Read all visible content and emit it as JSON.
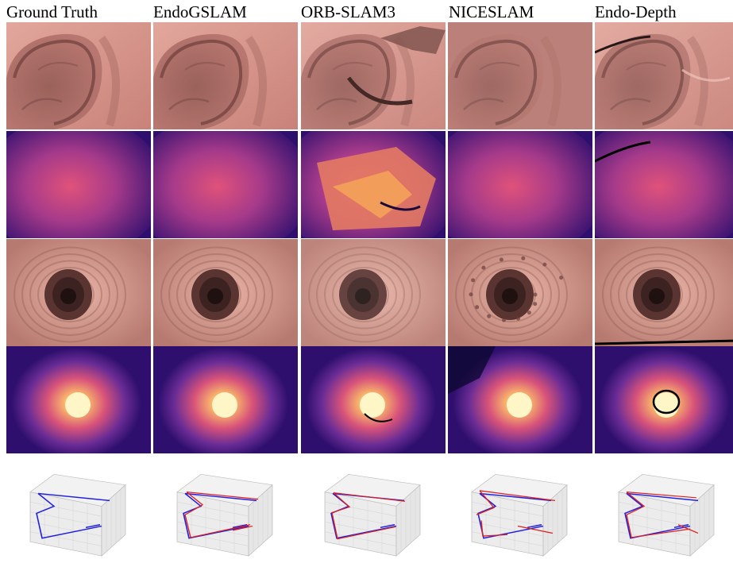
{
  "columns": [
    {
      "id": "gt",
      "label": "Ground Truth"
    },
    {
      "id": "endogslam",
      "label": "EndoGSLAM"
    },
    {
      "id": "orbslam3",
      "label": "ORB-SLAM3"
    },
    {
      "id": "niceslam",
      "label": "NICESLAM"
    },
    {
      "id": "endodepth",
      "label": "Endo-Depth"
    }
  ],
  "rows": [
    {
      "id": "rgb-scene-1",
      "kind": "rgb",
      "scene": "fold"
    },
    {
      "id": "depth-scene-1",
      "kind": "depth",
      "scene": "fold"
    },
    {
      "id": "rgb-scene-2",
      "kind": "rgb",
      "scene": "lumen"
    },
    {
      "id": "depth-scene-2",
      "kind": "depth",
      "scene": "lumen"
    },
    {
      "id": "trajectory",
      "kind": "trajectory-3d"
    }
  ],
  "colors": {
    "tissue": "#d9978d",
    "tissue_dark": "#7a4a45",
    "depth_far": "#2e0f6e",
    "depth_near": "#fcefa8",
    "traj_gt": "#1f1fe0",
    "traj_est": "#e01f1f"
  }
}
